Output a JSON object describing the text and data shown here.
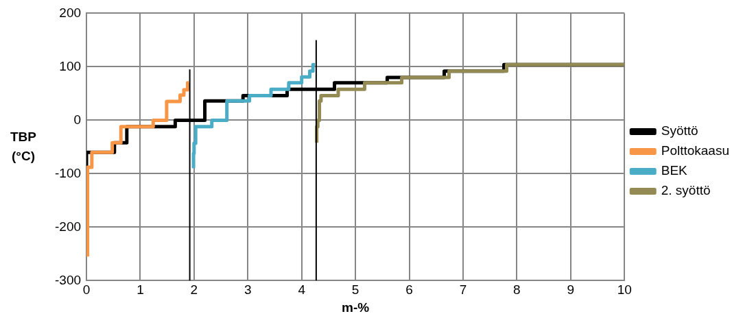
{
  "chart_data": {
    "type": "step",
    "xlabel": "m-%",
    "ylabel": "TBP (°C)",
    "xlim": [
      0,
      10
    ],
    "xticks": [
      0,
      1,
      2,
      3,
      4,
      5,
      6,
      7,
      8,
      9,
      10
    ],
    "ylim": [
      -300,
      200
    ],
    "yticks": [
      -300,
      -200,
      -100,
      0,
      100,
      200
    ],
    "grid": true,
    "legend": "right",
    "series": [
      {
        "name": "Syöttö",
        "color": "#000000",
        "x": [
          0,
          0.52,
          0.75,
          1.65,
          2.2,
          2.91,
          3.73,
          4.61,
          5.59,
          6.65,
          7.76,
          8.93,
          10
        ],
        "values": [
          -90,
          -60,
          -42,
          -12,
          0,
          36,
          46,
          58,
          70,
          80,
          92,
          104,
          104
        ]
      },
      {
        "name": "Polttokaasu",
        "color": "#f79646",
        "x": [
          0.02,
          0.02,
          0.1,
          0.48,
          0.64,
          1.24,
          1.49,
          1.74,
          1.81,
          1.88,
          1.9
        ],
        "values": [
          -255,
          -162,
          -88,
          -60,
          -42,
          -12,
          0,
          35,
          47,
          57,
          70
        ]
      },
      {
        "name": "BEK",
        "color": "#4bacc6",
        "x": [
          1.99,
          2.0,
          2.03,
          2.33,
          2.61,
          3.03,
          3.43,
          3.76,
          4.0,
          4.15,
          4.21,
          4.25
        ],
        "values": [
          -90,
          -62,
          -43,
          -12,
          0,
          36,
          46,
          58,
          70,
          81,
          92,
          104
        ]
      },
      {
        "name": "2. syöttö",
        "color": "#948a54",
        "x": [
          4.28,
          4.3,
          4.33,
          4.36,
          4.68,
          5.17,
          5.86,
          6.74,
          7.81,
          8.95,
          10
        ],
        "values": [
          -42,
          -12,
          0,
          36,
          46,
          58,
          70,
          80,
          92,
          104,
          104
        ]
      },
      {
        "type": "line",
        "color": "#000000",
        "x": [
          1.92,
          1.92
        ],
        "values": [
          -300,
          95
        ]
      },
      {
        "type": "line",
        "color": "#000000",
        "x": [
          4.27,
          4.27
        ],
        "values": [
          -300,
          150
        ]
      }
    ]
  }
}
